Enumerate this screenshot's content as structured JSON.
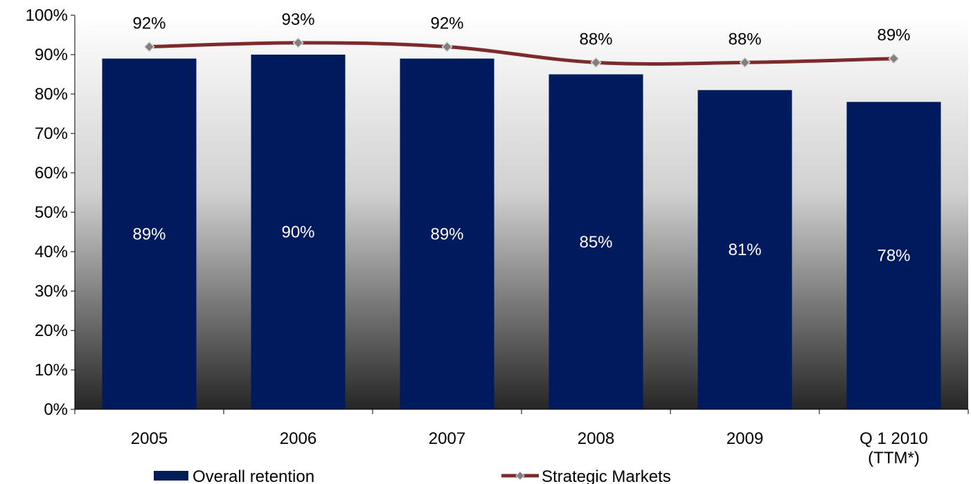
{
  "colors": {
    "bar": "#001a5e",
    "line": "#7b2b2b",
    "marker_fill": "#808080",
    "marker_stroke": "#d9d9d9",
    "bg_top": "#ffffff",
    "bg_bottom": "#262626",
    "axis": "#000000"
  },
  "chart_data": {
    "type": "bar",
    "categories": [
      [
        "2005"
      ],
      [
        "2006"
      ],
      [
        "2007"
      ],
      [
        "2008"
      ],
      [
        "2009"
      ],
      [
        "Q 1 2010",
        "(TTM*)"
      ]
    ],
    "ylim": [
      0,
      100
    ],
    "yticks": [
      0,
      10,
      20,
      30,
      40,
      50,
      60,
      70,
      80,
      90,
      100
    ],
    "ytick_labels": [
      "0%",
      "10%",
      "20%",
      "30%",
      "40%",
      "50%",
      "60%",
      "70%",
      "80%",
      "90%",
      "100%"
    ],
    "series": [
      {
        "name": "Overall retention",
        "type": "bar",
        "values": [
          89,
          90,
          89,
          85,
          81,
          78
        ],
        "labels": [
          "89%",
          "90%",
          "89%",
          "85%",
          "81%",
          "78%"
        ]
      },
      {
        "name": "Strategic Markets",
        "type": "line",
        "values": [
          92,
          93,
          92,
          88,
          88,
          89
        ],
        "labels": [
          "92%",
          "93%",
          "92%",
          "88%",
          "88%",
          "89%"
        ]
      }
    ],
    "legend_position": "bottom",
    "grid": false
  }
}
